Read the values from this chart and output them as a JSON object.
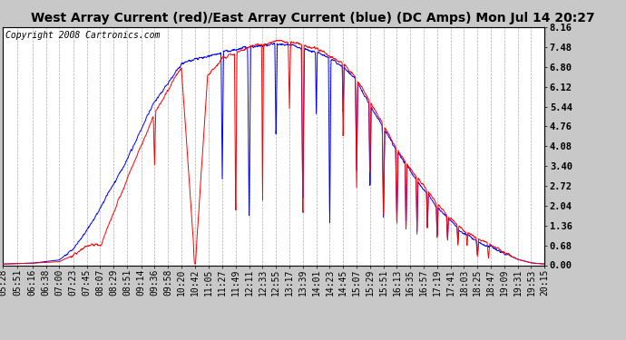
{
  "title": "West Array Current (red)/East Array Current (blue) (DC Amps) Mon Jul 14 20:27",
  "copyright": "Copyright 2008 Cartronics.com",
  "y_ticks": [
    0.0,
    0.68,
    1.36,
    2.04,
    2.72,
    3.4,
    4.08,
    4.76,
    5.44,
    6.12,
    6.8,
    7.48,
    8.16
  ],
  "ylim": [
    0.0,
    8.16
  ],
  "x_tick_labels": [
    "05:28",
    "05:51",
    "06:16",
    "06:38",
    "07:00",
    "07:23",
    "07:45",
    "08:07",
    "08:29",
    "08:51",
    "09:14",
    "09:36",
    "09:58",
    "10:20",
    "10:42",
    "11:05",
    "11:27",
    "11:49",
    "12:11",
    "12:33",
    "12:55",
    "13:17",
    "13:39",
    "14:01",
    "14:23",
    "14:45",
    "15:07",
    "15:29",
    "15:51",
    "16:13",
    "16:35",
    "16:57",
    "17:19",
    "17:41",
    "18:03",
    "18:25",
    "18:47",
    "19:09",
    "19:31",
    "19:53",
    "20:15"
  ],
  "background_color": "#c8c8c8",
  "plot_bg_color": "#ffffff",
  "grid_color": "#aaaaaa",
  "red_color": "#ff0000",
  "blue_color": "#0000ff",
  "title_fontsize": 10,
  "copyright_fontsize": 7,
  "tick_fontsize": 7
}
